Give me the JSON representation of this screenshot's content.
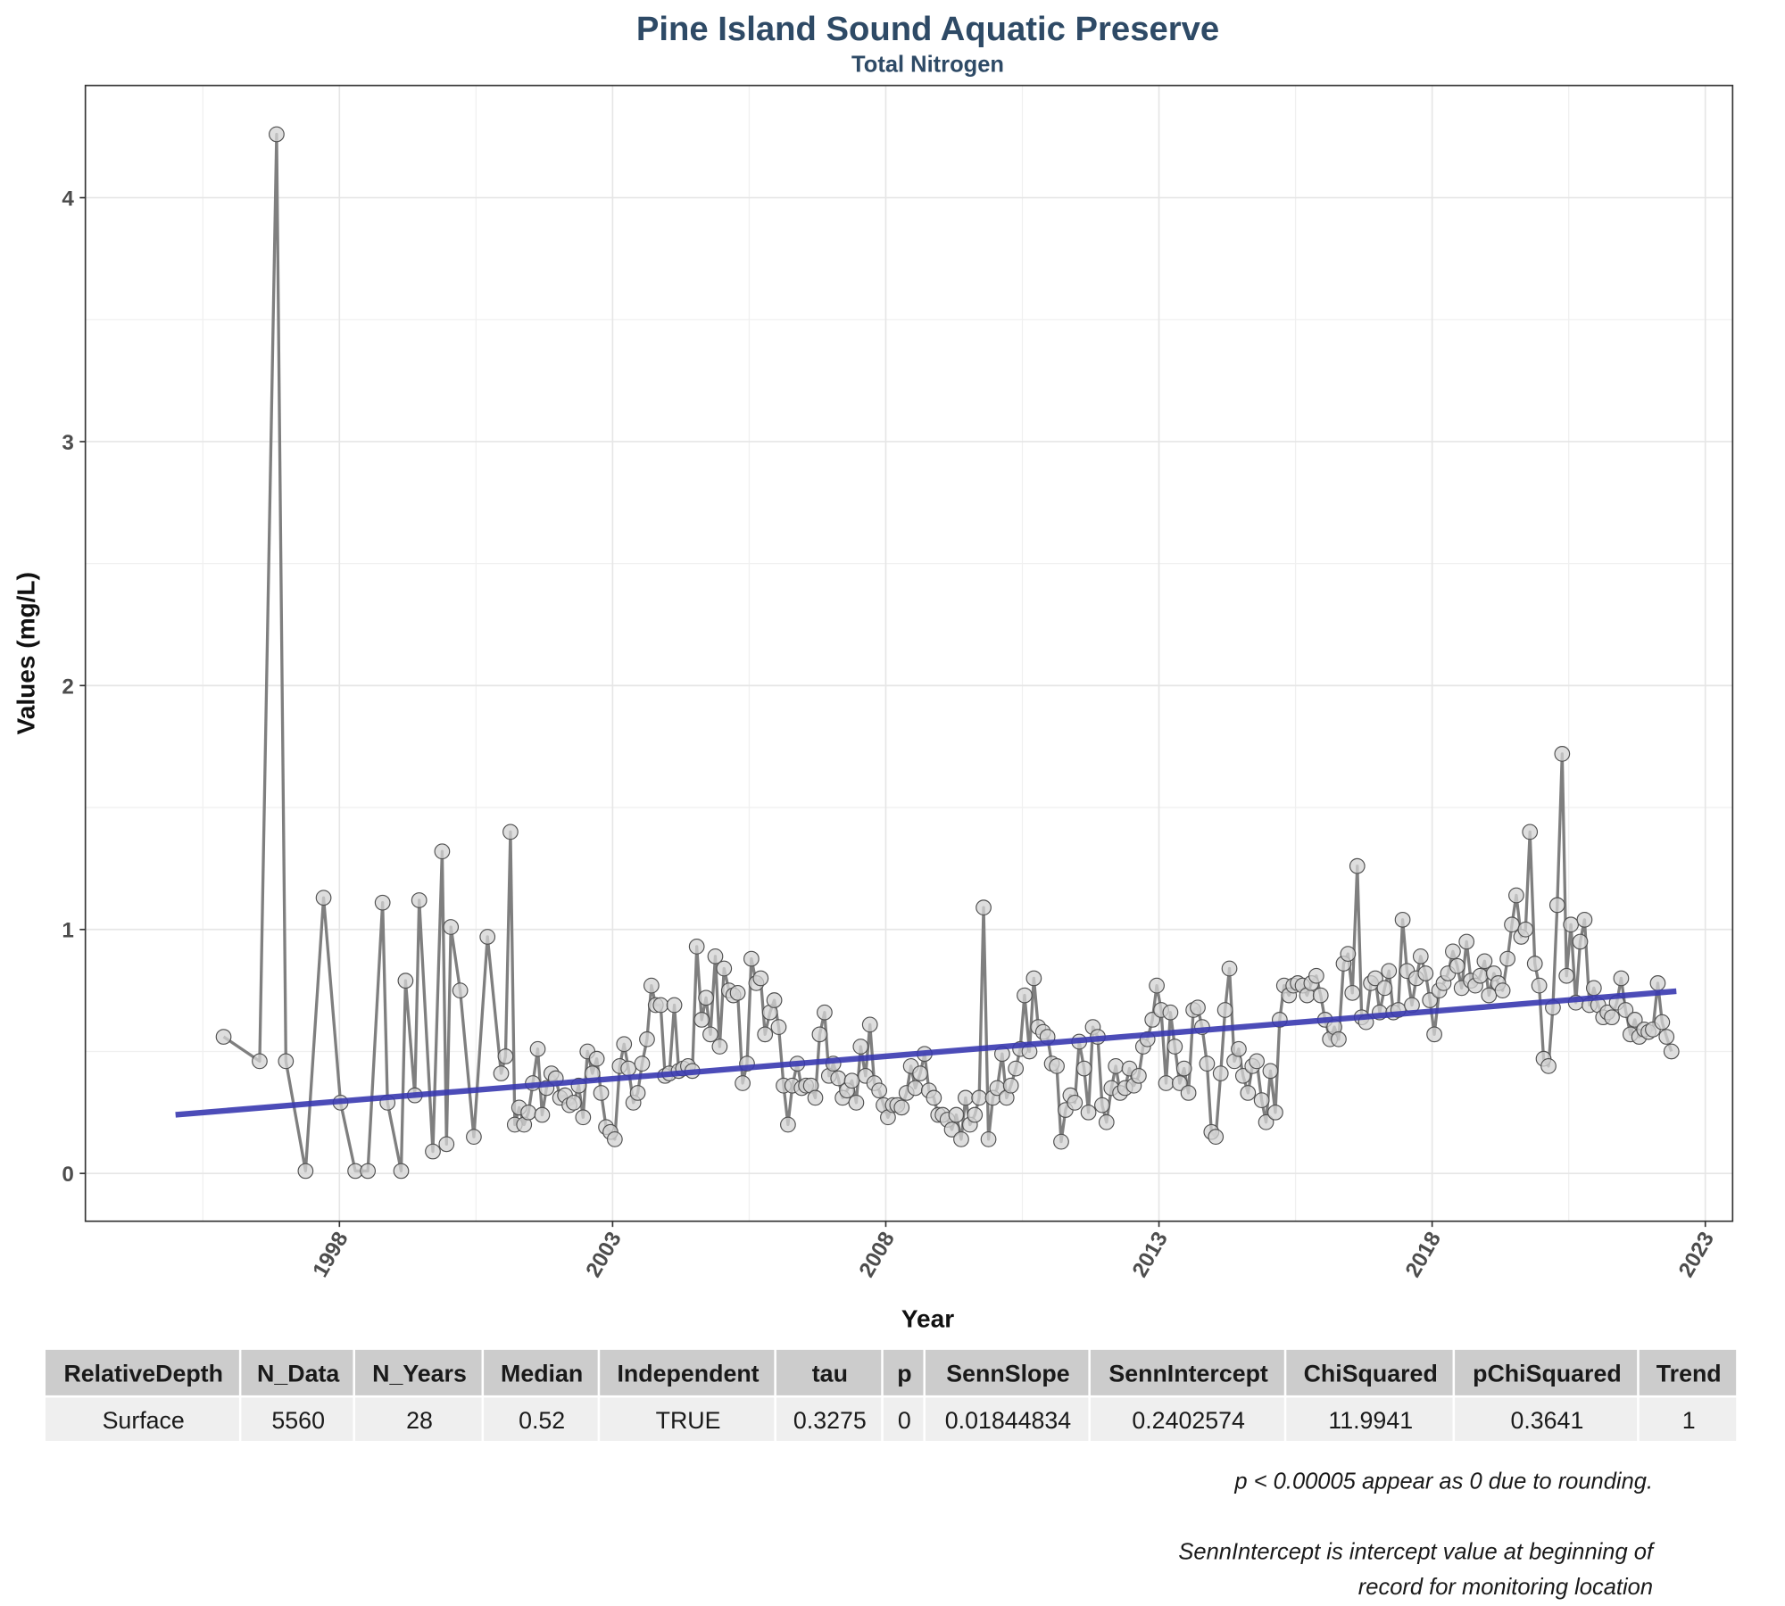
{
  "chart_data": {
    "type": "line",
    "title": "Pine Island Sound Aquatic Preserve",
    "subtitle": "Total Nitrogen",
    "x_label": "Year",
    "y_label": "Values (mg/L)",
    "line_color": "#7f7f7f",
    "point_fill": "#d3d3d3",
    "point_stroke": "#505050",
    "grid": true,
    "xlim": [
      1993.35,
      2023.5
    ],
    "xticks": [
      1998,
      2003,
      2008,
      2013,
      2018,
      2023
    ],
    "ylim": [
      -0.196,
      4.46
    ],
    "yticks": [
      0,
      1,
      2,
      3,
      4
    ],
    "x": [
      1995.88,
      1996.54,
      1996.85,
      1997.02,
      1997.38,
      1997.71,
      1998.02,
      1998.29,
      1998.52,
      1998.79,
      1998.88,
      1999.13,
      1999.21,
      1999.38,
      1999.46,
      1999.71,
      1999.88,
      1999.96,
      2000.04,
      2000.21,
      2000.46,
      2000.71,
      2000.96,
      2001.04,
      2001.13,
      2001.21,
      2001.29,
      2001.38,
      2001.46,
      2001.54,
      2001.63,
      2001.71,
      2001.79,
      2001.88,
      2001.96,
      2002.04,
      2002.13,
      2002.21,
      2002.29,
      2002.38,
      2002.46,
      2002.54,
      2002.63,
      2002.71,
      2002.79,
      2002.88,
      2002.96,
      2003.04,
      2003.13,
      2003.21,
      2003.29,
      2003.38,
      2003.46,
      2003.54,
      2003.63,
      2003.71,
      2003.79,
      2003.88,
      2003.96,
      2004.04,
      2004.13,
      2004.21,
      2004.29,
      2004.38,
      2004.46,
      2004.54,
      2004.63,
      2004.71,
      2004.79,
      2004.88,
      2004.96,
      2005.04,
      2005.13,
      2005.21,
      2005.29,
      2005.38,
      2005.46,
      2005.54,
      2005.63,
      2005.71,
      2005.79,
      2005.88,
      2005.96,
      2006.04,
      2006.13,
      2006.21,
      2006.29,
      2006.38,
      2006.46,
      2006.54,
      2006.63,
      2006.71,
      2006.79,
      2006.88,
      2006.96,
      2007.04,
      2007.13,
      2007.21,
      2007.29,
      2007.38,
      2007.46,
      2007.54,
      2007.63,
      2007.71,
      2007.79,
      2007.88,
      2007.96,
      2008.04,
      2008.13,
      2008.21,
      2008.29,
      2008.38,
      2008.46,
      2008.54,
      2008.63,
      2008.71,
      2008.79,
      2008.88,
      2008.96,
      2009.04,
      2009.13,
      2009.21,
      2009.29,
      2009.38,
      2009.46,
      2009.54,
      2009.63,
      2009.71,
      2009.79,
      2009.88,
      2009.96,
      2010.04,
      2010.13,
      2010.21,
      2010.29,
      2010.38,
      2010.46,
      2010.54,
      2010.63,
      2010.71,
      2010.79,
      2010.88,
      2010.96,
      2011.04,
      2011.13,
      2011.21,
      2011.29,
      2011.38,
      2011.46,
      2011.54,
      2011.63,
      2011.71,
      2011.79,
      2011.88,
      2011.96,
      2012.04,
      2012.13,
      2012.21,
      2012.29,
      2012.38,
      2012.46,
      2012.54,
      2012.63,
      2012.71,
      2012.79,
      2012.88,
      2012.96,
      2013.04,
      2013.13,
      2013.21,
      2013.29,
      2013.38,
      2013.46,
      2013.54,
      2013.63,
      2013.71,
      2013.79,
      2013.88,
      2013.96,
      2014.04,
      2014.13,
      2014.21,
      2014.29,
      2014.38,
      2014.46,
      2014.54,
      2014.63,
      2014.71,
      2014.79,
      2014.88,
      2014.96,
      2015.04,
      2015.13,
      2015.21,
      2015.29,
      2015.38,
      2015.46,
      2015.54,
      2015.63,
      2015.71,
      2015.79,
      2015.88,
      2015.96,
      2016.04,
      2016.13,
      2016.21,
      2016.29,
      2016.38,
      2016.46,
      2016.54,
      2016.63,
      2016.71,
      2016.79,
      2016.88,
      2016.96,
      2017.04,
      2017.13,
      2017.21,
      2017.29,
      2017.38,
      2017.46,
      2017.54,
      2017.63,
      2017.71,
      2017.79,
      2017.88,
      2017.96,
      2018.04,
      2018.13,
      2018.21,
      2018.29,
      2018.38,
      2018.46,
      2018.54,
      2018.63,
      2018.71,
      2018.79,
      2018.88,
      2018.96,
      2019.04,
      2019.13,
      2019.21,
      2019.29,
      2019.38,
      2019.46,
      2019.54,
      2019.63,
      2019.71,
      2019.79,
      2019.88,
      2019.96,
      2020.04,
      2020.13,
      2020.21,
      2020.29,
      2020.38,
      2020.46,
      2020.54,
      2020.63,
      2020.71,
      2020.79,
      2020.88,
      2020.96,
      2021.04,
      2021.13,
      2021.21,
      2021.29,
      2021.38,
      2021.46,
      2021.54,
      2021.63,
      2021.71,
      2021.79,
      2021.88,
      2021.96,
      2022.04,
      2022.13,
      2022.21,
      2022.29,
      2022.38
    ],
    "values": [
      0.56,
      0.46,
      4.26,
      0.46,
      0.01,
      1.13,
      0.29,
      0.01,
      0.01,
      1.11,
      0.29,
      0.01,
      0.79,
      0.32,
      1.12,
      0.09,
      1.32,
      0.12,
      1.01,
      0.75,
      0.15,
      0.97,
      0.41,
      0.48,
      1.4,
      0.2,
      0.27,
      0.2,
      0.25,
      0.37,
      0.51,
      0.24,
      0.35,
      0.41,
      0.39,
      0.31,
      0.32,
      0.28,
      0.29,
      0.36,
      0.23,
      0.5,
      0.41,
      0.47,
      0.33,
      0.19,
      0.17,
      0.14,
      0.44,
      0.53,
      0.43,
      0.29,
      0.33,
      0.45,
      0.55,
      0.77,
      0.69,
      0.69,
      0.4,
      0.41,
      0.69,
      0.42,
      0.43,
      0.44,
      0.42,
      0.93,
      0.63,
      0.72,
      0.57,
      0.89,
      0.52,
      0.84,
      0.75,
      0.73,
      0.74,
      0.37,
      0.45,
      0.88,
      0.78,
      0.8,
      0.57,
      0.66,
      0.71,
      0.6,
      0.36,
      0.2,
      0.36,
      0.45,
      0.35,
      0.36,
      0.36,
      0.31,
      0.57,
      0.66,
      0.4,
      0.45,
      0.39,
      0.31,
      0.34,
      0.38,
      0.29,
      0.52,
      0.4,
      0.61,
      0.37,
      0.34,
      0.28,
      0.23,
      0.28,
      0.28,
      0.27,
      0.33,
      0.44,
      0.35,
      0.41,
      0.49,
      0.34,
      0.31,
      0.24,
      0.24,
      0.22,
      0.18,
      0.24,
      0.14,
      0.31,
      0.2,
      0.24,
      0.31,
      1.09,
      0.14,
      0.31,
      0.35,
      0.49,
      0.31,
      0.36,
      0.43,
      0.51,
      0.73,
      0.5,
      0.8,
      0.6,
      0.58,
      0.56,
      0.45,
      0.44,
      0.13,
      0.26,
      0.32,
      0.29,
      0.54,
      0.43,
      0.25,
      0.6,
      0.56,
      0.28,
      0.21,
      0.35,
      0.44,
      0.33,
      0.35,
      0.43,
      0.36,
      0.4,
      0.52,
      0.55,
      0.63,
      0.77,
      0.67,
      0.37,
      0.66,
      0.52,
      0.37,
      0.43,
      0.33,
      0.67,
      0.68,
      0.6,
      0.45,
      0.17,
      0.15,
      0.41,
      0.67,
      0.84,
      0.46,
      0.51,
      0.4,
      0.33,
      0.44,
      0.46,
      0.3,
      0.21,
      0.42,
      0.25,
      0.63,
      0.77,
      0.73,
      0.77,
      0.78,
      0.77,
      0.73,
      0.78,
      0.81,
      0.73,
      0.63,
      0.55,
      0.6,
      0.55,
      0.86,
      0.9,
      0.74,
      1.26,
      0.64,
      0.62,
      0.78,
      0.8,
      0.66,
      0.76,
      0.83,
      0.66,
      0.67,
      1.04,
      0.83,
      0.69,
      0.8,
      0.89,
      0.82,
      0.71,
      0.57,
      0.75,
      0.78,
      0.82,
      0.91,
      0.85,
      0.76,
      0.95,
      0.79,
      0.77,
      0.81,
      0.87,
      0.73,
      0.82,
      0.78,
      0.75,
      0.88,
      1.02,
      1.14,
      0.97,
      1.0,
      1.4,
      0.86,
      0.77,
      0.47,
      0.44,
      0.68,
      1.1,
      1.72,
      0.81,
      1.02,
      0.7,
      0.95,
      1.04,
      0.69,
      0.76,
      0.69,
      0.64,
      0.66,
      0.64,
      0.7,
      0.8,
      0.67,
      0.57,
      0.63,
      0.56,
      0.59,
      0.58,
      0.59,
      0.78,
      0.62,
      0.56,
      0.5
    ],
    "trend_line": {
      "color": "#3939b0",
      "x": [
        1995.0,
        2022.47
      ],
      "values": [
        0.2403,
        0.747
      ]
    }
  },
  "table": {
    "header": [
      "RelativeDepth",
      "N_Data",
      "N_Years",
      "Median",
      "Independent",
      "tau",
      "p",
      "SennSlope",
      "SennIntercept",
      "ChiSquared",
      "pChiSquared",
      "Trend"
    ],
    "rows": [
      [
        "Surface",
        5560,
        28,
        0.52,
        "TRUE",
        0.3275,
        0,
        0.01844834,
        0.2402574,
        11.9941,
        0.3641,
        1
      ]
    ]
  },
  "notes": [
    "p < 0.00005 appear as 0 due to rounding.",
    "SennIntercept is intercept value at beginning of",
    "record for monitoring location"
  ]
}
